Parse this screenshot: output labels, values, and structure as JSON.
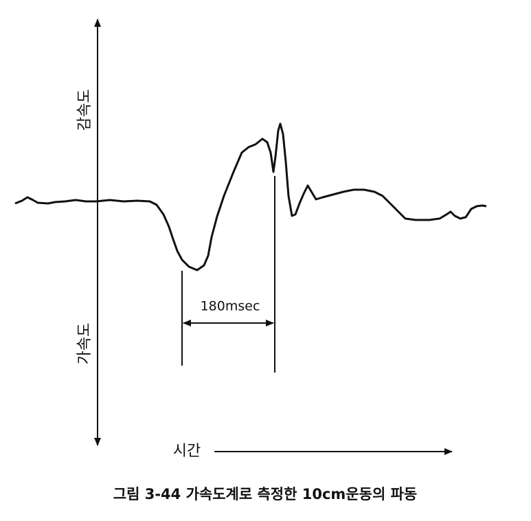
{
  "labels": {
    "deceleration": "감속도",
    "acceleration": "가속도",
    "interval": "180msec",
    "time": "시간"
  },
  "caption": "그림 3-44 가속도계로 측정한 10cm운동의 파동"
}
